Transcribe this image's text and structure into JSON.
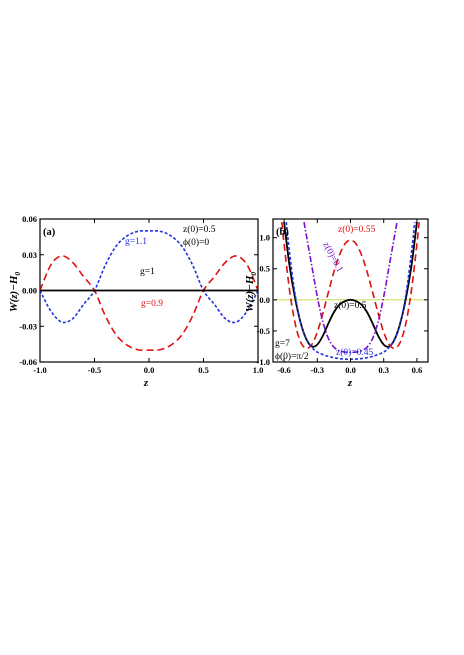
{
  "chart_data": [
    {
      "type": "line",
      "panel_label": "(a)",
      "xlabel": "z",
      "ylabel": "W(z)−H",
      "ylabel_sub": "0",
      "xlim": [
        -1.0,
        1.0
      ],
      "ylim": [
        -0.06,
        0.06
      ],
      "xticks": [
        "-1.0",
        "-0.5",
        "0.0",
        "0.5",
        "1.0"
      ],
      "xtick_values": [
        -1.0,
        -0.5,
        0.0,
        0.5,
        1.0
      ],
      "yticks": [
        "-0.06",
        "-0.03",
        "0.00",
        "0.03",
        "0.06"
      ],
      "ytick_values": [
        -0.06,
        -0.03,
        0.0,
        0.03,
        0.06
      ],
      "params": [
        "z(0)=0.5",
        "ϕ(0)=0"
      ],
      "series": [
        {
          "name": "g=1.1",
          "color": "#2233dd",
          "dash": "short",
          "x": [
            -1.0,
            -0.9,
            -0.8,
            -0.7,
            -0.6,
            -0.5,
            -0.4,
            -0.3,
            -0.2,
            -0.1,
            0.0,
            0.1,
            0.2,
            0.3,
            0.4,
            0.5,
            0.6,
            0.7,
            0.8,
            0.9,
            1.0
          ],
          "y": [
            0.0,
            -0.0173,
            -0.0265,
            -0.0236,
            -0.0116,
            0.0,
            0.0214,
            0.0374,
            0.0459,
            0.0497,
            0.05,
            0.0497,
            0.0459,
            0.0374,
            0.0214,
            0.0,
            -0.0116,
            -0.0236,
            -0.0265,
            -0.0173,
            0.0
          ]
        },
        {
          "name": "g=0.9",
          "color": "#dd1111",
          "dash": "long",
          "x": [
            -1.0,
            -0.9,
            -0.8,
            -0.7,
            -0.6,
            -0.5,
            -0.4,
            -0.3,
            -0.2,
            -0.1,
            0.0,
            0.1,
            0.2,
            0.3,
            0.4,
            0.5,
            0.6,
            0.7,
            0.8,
            0.9,
            1.0
          ],
          "y": [
            0.0,
            0.0215,
            0.029,
            0.0235,
            0.0116,
            0.0,
            -0.0214,
            -0.0374,
            -0.0459,
            -0.0497,
            -0.05,
            -0.0497,
            -0.0459,
            -0.0374,
            -0.0214,
            0.0,
            0.0116,
            0.0235,
            0.029,
            0.0215,
            0.0
          ]
        },
        {
          "name": "g=1",
          "color": "#000000",
          "dash": "solid",
          "x": [
            -1.0,
            1.0
          ],
          "y": [
            0.0,
            0.0
          ]
        }
      ]
    },
    {
      "type": "line",
      "panel_label": "(b)",
      "xlabel": "z",
      "ylabel": "W(z)−H",
      "ylabel_sub": "0",
      "xlim": [
        -0.7,
        0.7
      ],
      "ylim": [
        -1.0,
        1.3
      ],
      "xticks": [
        "-0.6",
        "-0.3",
        "0.0",
        "0.3",
        "0.6"
      ],
      "xtick_values": [
        -0.6,
        -0.3,
        0.0,
        0.3,
        0.6
      ],
      "yticks": [
        "-1.0",
        "-0.5",
        "0.0",
        "0.5",
        "1.0"
      ],
      "ytick_values": [
        -1.0,
        -0.5,
        0.0,
        0.5,
        1.0
      ],
      "params": [
        "g=7",
        "ϕ(0)=π/2"
      ],
      "reference_line": {
        "y": 0.0,
        "color": "#bbdd33"
      },
      "series": [
        {
          "name": "z(0)=0.5",
          "color": "#000000",
          "dash": "solid",
          "x": [
            -0.6,
            -0.55,
            -0.5,
            -0.45,
            -0.4,
            -0.35,
            -0.3,
            -0.25,
            -0.2,
            -0.15,
            -0.1,
            -0.05,
            0.0,
            0.05,
            0.1,
            0.15,
            0.2,
            0.25,
            0.3,
            0.35,
            0.4,
            0.45,
            0.5,
            0.55,
            0.6
          ],
          "y": [
            1.25,
            0.54,
            0.02,
            -0.37,
            -0.63,
            -0.75,
            -0.72,
            -0.58,
            -0.38,
            -0.2,
            -0.08,
            -0.02,
            0.0,
            -0.02,
            -0.08,
            -0.2,
            -0.38,
            -0.58,
            -0.72,
            -0.75,
            -0.63,
            -0.37,
            0.02,
            0.54,
            1.25
          ]
        },
        {
          "name": "z(0)=0.55",
          "color": "#dd1111",
          "dash": "long",
          "x": [
            -0.62,
            -0.6,
            -0.55,
            -0.5,
            -0.45,
            -0.4,
            -0.35,
            -0.3,
            -0.25,
            -0.2,
            -0.15,
            -0.1,
            -0.05,
            0.0,
            0.05,
            0.1,
            0.15,
            0.2,
            0.25,
            0.3,
            0.35,
            0.4,
            0.45,
            0.5,
            0.55,
            0.6,
            0.62
          ],
          "y": [
            1.25,
            0.9,
            0.15,
            -0.38,
            -0.68,
            -0.78,
            -0.72,
            -0.52,
            -0.22,
            0.12,
            0.45,
            0.72,
            0.9,
            0.96,
            0.9,
            0.72,
            0.45,
            0.12,
            -0.22,
            -0.52,
            -0.72,
            -0.78,
            -0.68,
            -0.38,
            0.15,
            0.9,
            1.25
          ]
        },
        {
          "name": "z(0)=0.45",
          "color": "#2233dd",
          "dash": "short",
          "x": [
            -0.58,
            -0.55,
            -0.5,
            -0.45,
            -0.4,
            -0.35,
            -0.3,
            -0.2,
            -0.1,
            0.0,
            0.1,
            0.2,
            0.3,
            0.35,
            0.4,
            0.45,
            0.5,
            0.55,
            0.58
          ],
          "y": [
            1.25,
            0.75,
            0.08,
            -0.38,
            -0.62,
            -0.76,
            -0.84,
            -0.91,
            -0.945,
            -0.955,
            -0.945,
            -0.91,
            -0.84,
            -0.76,
            -0.62,
            -0.38,
            0.08,
            0.75,
            1.25
          ]
        },
        {
          "name": "z(0)=0.1",
          "color": "#7711cc",
          "dash": "dashdot",
          "x": [
            -0.42,
            -0.38,
            -0.35,
            -0.3,
            -0.25,
            -0.2,
            -0.15,
            -0.1,
            -0.05,
            0.0,
            0.05,
            0.1,
            0.15,
            0.2,
            0.25,
            0.3,
            0.35,
            0.38,
            0.42
          ],
          "y": [
            1.25,
            0.85,
            0.55,
            0.05,
            -0.35,
            -0.62,
            -0.76,
            -0.82,
            -0.84,
            -0.845,
            -0.84,
            -0.82,
            -0.76,
            -0.62,
            -0.35,
            0.05,
            0.55,
            0.85,
            1.25
          ]
        }
      ]
    }
  ],
  "panel_a": {
    "label_g11": "g=1.1",
    "label_g09": "g=0.9",
    "label_g1": "g=1"
  },
  "panel_b": {
    "label_055": "z(0)=0.55",
    "label_01": "z(0)=0.1",
    "label_05": "z(0)=0.5",
    "label_045": "z(0)=0.45"
  }
}
